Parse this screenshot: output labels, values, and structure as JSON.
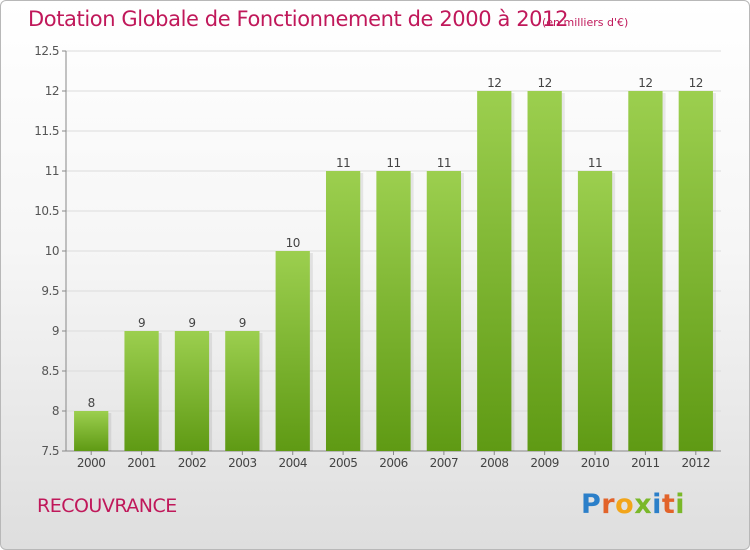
{
  "chart_data": {
    "type": "bar",
    "title": "Dotation Globale de Fonctionnement de 2000 à 2012",
    "subtitle": "(en milliers d'€)",
    "categories": [
      "2000",
      "2001",
      "2002",
      "2003",
      "2004",
      "2005",
      "2006",
      "2007",
      "2008",
      "2009",
      "2010",
      "2011",
      "2012"
    ],
    "values": [
      8,
      9,
      9,
      9,
      10,
      11,
      11,
      11,
      12,
      12,
      11,
      12,
      12
    ],
    "ylim": [
      7.5,
      12.5
    ],
    "yticks": [
      7.5,
      8,
      8.5,
      9,
      9.5,
      10,
      10.5,
      11,
      11.5,
      12,
      12.5
    ],
    "ytick_labels": [
      "7.5",
      "8",
      "8.5",
      "9",
      "9.5",
      "10",
      "10.5",
      "11",
      "11.5",
      "12",
      "12.5"
    ],
    "grid": true,
    "bar_color_top": "#9ccf4f",
    "bar_color_bottom": "#5f9a14"
  },
  "footer": {
    "commune": "RECOUVRANCE",
    "logo_letters": [
      {
        "ch": "P",
        "color": "#2b7fc9"
      },
      {
        "ch": "r",
        "color": "#e2632a"
      },
      {
        "ch": "o",
        "color": "#f2a51a"
      },
      {
        "ch": "x",
        "color": "#7ab829"
      },
      {
        "ch": "i",
        "color": "#2b7fc9"
      },
      {
        "ch": "t",
        "color": "#e2632a"
      },
      {
        "ch": "i",
        "color": "#7ab829"
      }
    ]
  }
}
